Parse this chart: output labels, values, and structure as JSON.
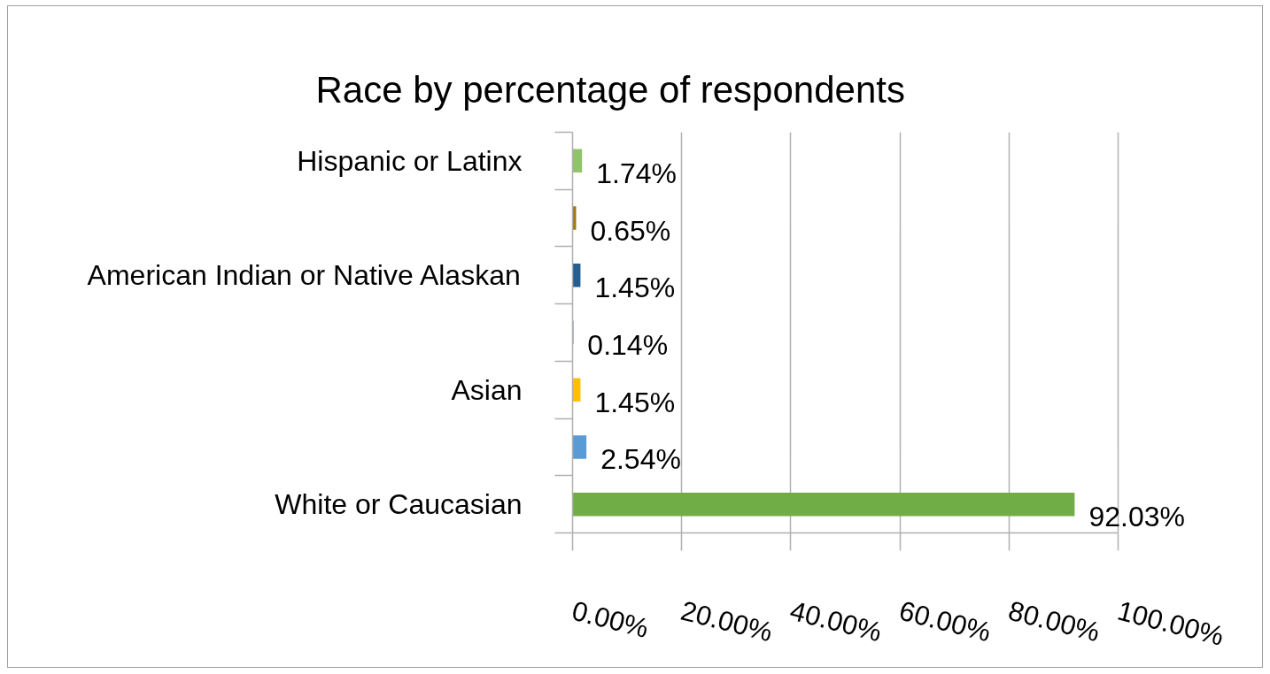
{
  "chart_data": {
    "type": "bar",
    "orientation": "horizontal",
    "title": "Race by percentage of respondents",
    "categories": [
      "Hispanic or Latinx",
      null,
      "American Indian or Native Alaskan",
      null,
      "Asian",
      null,
      "White or Caucasian"
    ],
    "values": [
      1.74,
      0.65,
      1.45,
      0.14,
      1.45,
      2.54,
      92.03
    ],
    "value_labels": [
      "1.74%",
      "0.65%",
      "1.45%",
      "0.14%",
      "1.45%",
      "2.54%",
      "92.03%"
    ],
    "colors": [
      "#8fc46a",
      "#9e7a0e",
      "#255e91",
      "#264478",
      "#ffc000",
      "#5b9bd5",
      "#70ad47"
    ],
    "xlim": [
      0,
      100
    ],
    "xticks": [
      {
        "value": 0,
        "label": "0.00%"
      },
      {
        "value": 20,
        "label": "20.00%"
      },
      {
        "value": 40,
        "label": "40.00%"
      },
      {
        "value": 60,
        "label": "60.00%"
      },
      {
        "value": 80,
        "label": "80.00%"
      },
      {
        "value": 100,
        "label": "100.00%"
      }
    ],
    "grid": "x"
  }
}
